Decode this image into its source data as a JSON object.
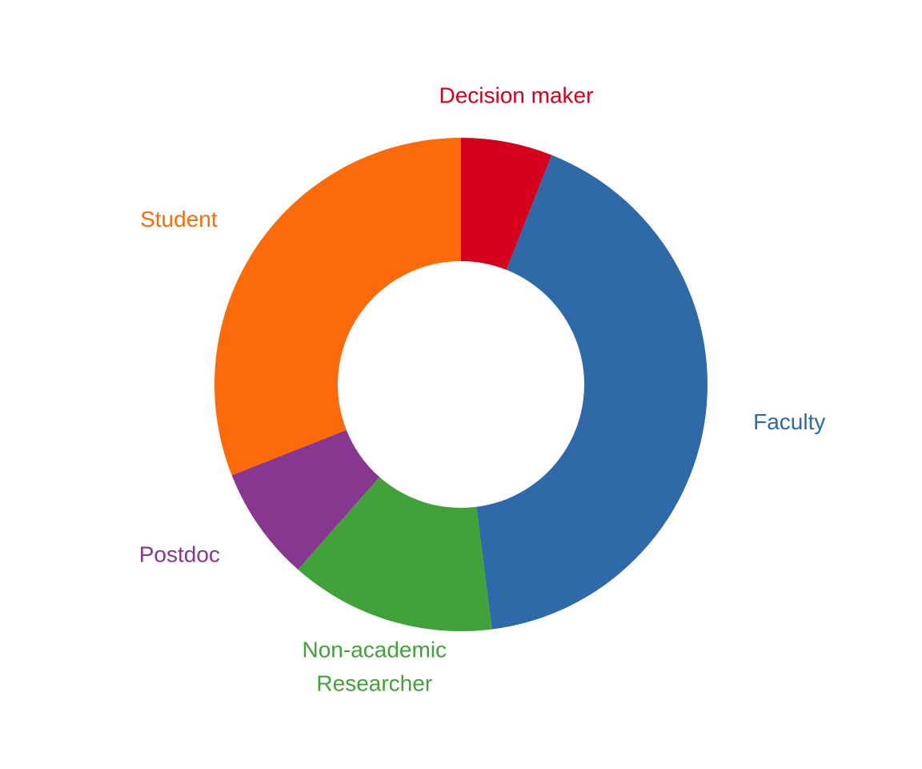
{
  "chart_data": {
    "type": "pie",
    "subtype": "donut",
    "title": "",
    "legend": "none",
    "label_placement": "outside",
    "slices": [
      {
        "label": "Decision maker",
        "lines": [
          "Decision maker"
        ],
        "value": 6.0,
        "color": "#D7001C"
      },
      {
        "label": "Faculty",
        "lines": [
          "Faculty"
        ],
        "value": 42.0,
        "color": "#2E69A8"
      },
      {
        "label": "Non-academic Researcher",
        "lines": [
          "Non-academic",
          "Researcher"
        ],
        "value": 13.5,
        "color": "#42A23A"
      },
      {
        "label": "Postdoc",
        "lines": [
          "Postdoc"
        ],
        "value": 7.5,
        "color": "#87378F"
      },
      {
        "label": "Student",
        "lines": [
          "Student"
        ],
        "value": 31.0,
        "color": "#FC6A0A"
      }
    ]
  }
}
